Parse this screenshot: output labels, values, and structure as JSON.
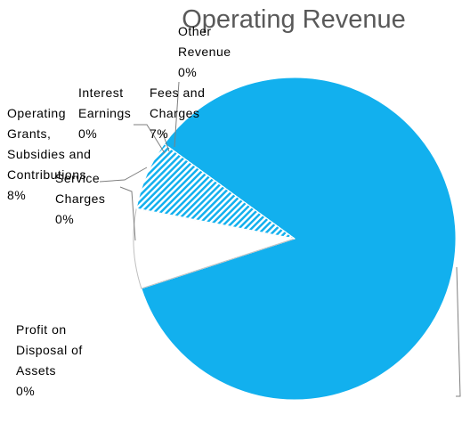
{
  "chart_data": {
    "type": "pie",
    "title": "Operating Revenue",
    "categories": [
      null,
      "Profit on Disposal of Assets",
      "Service Charges",
      "Operating Grants, Subsidies and Contributions",
      "Interest Earnings",
      "Fees and Charges",
      "Other Revenue"
    ],
    "values": [
      85,
      0,
      0,
      8,
      0,
      7,
      0
    ],
    "value_labels": [
      null,
      "0%",
      "0%",
      "8%",
      "0%",
      "7%",
      "0%"
    ],
    "colors": [
      "#12b0ee",
      "#12b0ee",
      "#12b0ee",
      "#ffffff",
      "#12b0ee",
      "#12b0ee",
      "#12b0ee"
    ],
    "hatched": [
      false,
      false,
      false,
      false,
      false,
      true,
      false
    ]
  }
}
